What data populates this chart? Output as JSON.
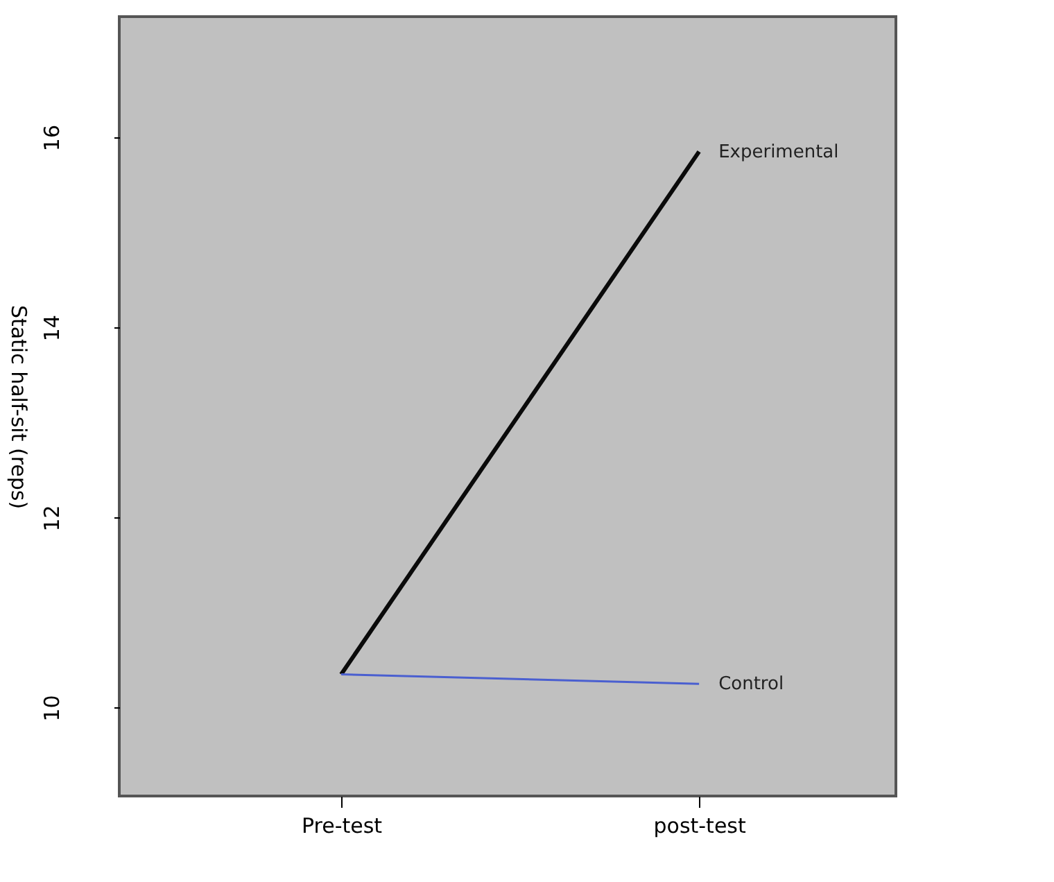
{
  "chart_data": {
    "type": "line",
    "ylabel": "Static half-sit (reps)",
    "categories": [
      "Pre-test",
      "post-test"
    ],
    "series": [
      {
        "name": "Experimental",
        "color": "#0a0a0a",
        "values": [
          10.35,
          15.85
        ]
      },
      {
        "name": "Control",
        "color": "#4a5fd0",
        "values": [
          10.35,
          10.25
        ]
      }
    ],
    "ylim": [
      9.07,
      17.27
    ],
    "yticks": [
      10,
      12,
      14,
      16
    ],
    "grid": false,
    "legend": false,
    "marker": "none",
    "line_style": "solid"
  }
}
